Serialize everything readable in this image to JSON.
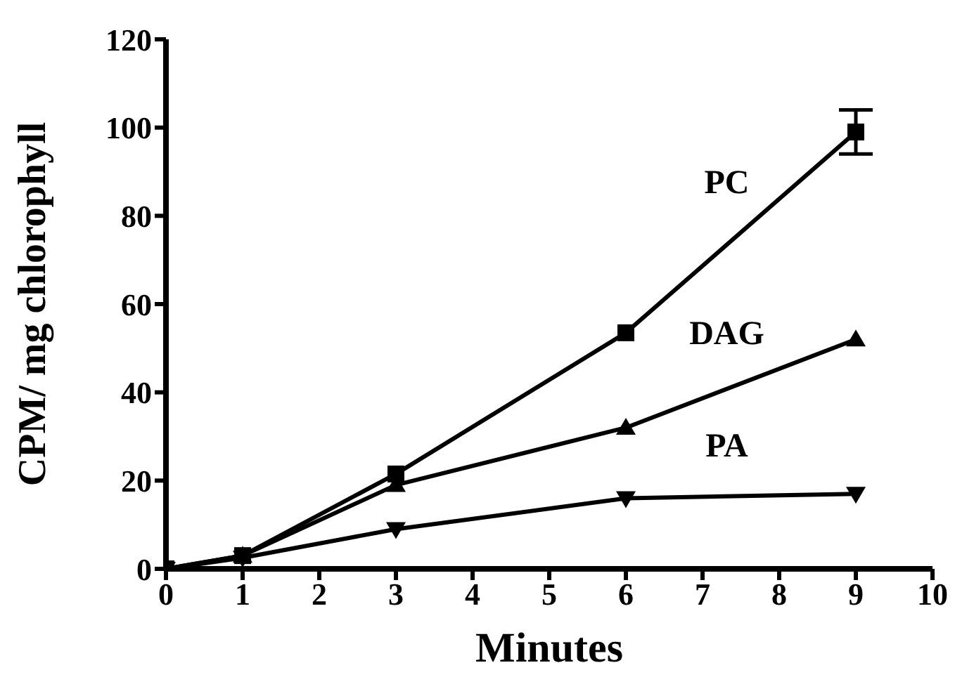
{
  "chart_data": {
    "type": "line",
    "xlabel": "Minutes",
    "ylabel": "CPM/ mg chlorophyll",
    "x": [
      0,
      1,
      3,
      6,
      9
    ],
    "series": [
      {
        "name": "PC",
        "color": "#000000",
        "marker": "square",
        "values": [
          0,
          3,
          21.5,
          53.5,
          99
        ],
        "errors": [
          null,
          null,
          null,
          null,
          5
        ]
      },
      {
        "name": "DAG",
        "color": "#000000",
        "marker": "triangle",
        "values": [
          0,
          3,
          19,
          32,
          52
        ]
      },
      {
        "name": "PA",
        "color": "#000000",
        "marker": "triangle-down",
        "values": [
          0,
          2.5,
          9,
          16,
          17
        ]
      }
    ],
    "xlim": [
      0,
      10
    ],
    "xticks": [
      0,
      1,
      2,
      3,
      4,
      5,
      6,
      7,
      8,
      9,
      10
    ],
    "ylim": [
      0,
      120
    ],
    "yticks": [
      0,
      20,
      40,
      60,
      80,
      100,
      120
    ],
    "grid": false,
    "legend": false,
    "line_style": "solid"
  }
}
